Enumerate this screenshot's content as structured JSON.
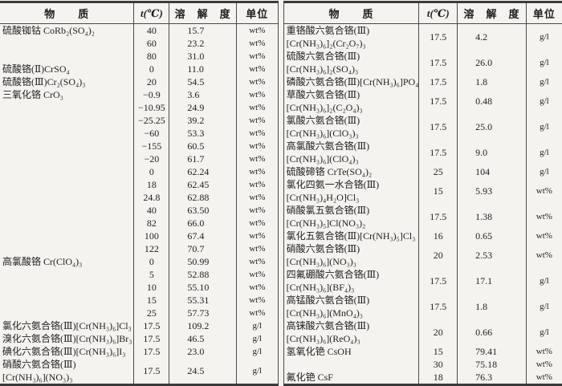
{
  "page": {
    "background": "#f4f3ef",
    "ink": "#1e1e1e",
    "rule_color": "#3c3c3c"
  },
  "tables": [
    {
      "name": "solubility-table-left",
      "headers": {
        "substance": "物　　质",
        "temperature": "t(℃)",
        "solubility": "溶　解　度",
        "unit": "单位"
      },
      "rows": [
        {
          "substance": "硫酸铷钴 CoRb₂(SO₄)₂",
          "t": "40",
          "s": "15.7",
          "u": "wt%"
        },
        {
          "substance": "",
          "t": "60",
          "s": "23.2",
          "u": "wt%"
        },
        {
          "substance": "",
          "t": "80",
          "s": "31.0",
          "u": "wt%"
        },
        {
          "substance": "硫酸铬(Ⅱ)CrSO₄",
          "t": "0",
          "s": "11.0",
          "u": "wt%"
        },
        {
          "substance": "硫酸铬(Ⅲ)Cr₂(SO₄)₃",
          "t": "20",
          "s": "54.5",
          "u": "wt%"
        },
        {
          "substance": "三氧化铬 CrO₃",
          "t": "−0.9",
          "s": "3.6",
          "u": "wt%"
        },
        {
          "substance": "",
          "t": "−10.95",
          "s": "24.9",
          "u": "wt%"
        },
        {
          "substance": "",
          "t": "−25.25",
          "s": "39.2",
          "u": "wt%"
        },
        {
          "substance": "",
          "t": "−60",
          "s": "53.3",
          "u": "wt%"
        },
        {
          "substance": "",
          "t": "−155",
          "s": "60.5",
          "u": "wt%"
        },
        {
          "substance": "",
          "t": "−20",
          "s": "61.7",
          "u": "wt%"
        },
        {
          "substance": "",
          "t": "0",
          "s": "62.24",
          "u": "wt%"
        },
        {
          "substance": "",
          "t": "18",
          "s": "62.45",
          "u": "wt%"
        },
        {
          "substance": "",
          "t": "24.8",
          "s": "62.88",
          "u": "wt%"
        },
        {
          "substance": "",
          "t": "40",
          "s": "63.50",
          "u": "wt%"
        },
        {
          "substance": "",
          "t": "82",
          "s": "66.0",
          "u": "wt%"
        },
        {
          "substance": "",
          "t": "100",
          "s": "67.4",
          "u": "wt%"
        },
        {
          "substance": "",
          "t": "122",
          "s": "70.7",
          "u": "wt%"
        },
        {
          "substance": "高氯酸铬 Cr(ClO₄)₃",
          "t": "0",
          "s": "50.99",
          "u": "wt%"
        },
        {
          "substance": "",
          "t": "5",
          "s": "52.88",
          "u": "wt%"
        },
        {
          "substance": "",
          "t": "10",
          "s": "55.10",
          "u": "wt%"
        },
        {
          "substance": "",
          "t": "15",
          "s": "55.31",
          "u": "wt%"
        },
        {
          "substance": "",
          "t": "25",
          "s": "57.73",
          "u": "wt%"
        },
        {
          "substance": "氯化六氨合铬(Ⅲ)[Cr(NH₃)₆]Cl₃",
          "t": "17.5",
          "s": "109.2",
          "u": "g/l"
        },
        {
          "substance": "溴化六氨合铬(Ⅲ)[Cr(NH₃)₆]Br₃",
          "t": "17.5",
          "s": "46.5",
          "u": "g/l"
        },
        {
          "substance": "碘化六氨合铬(Ⅲ)[Cr(NH₃)₆]I₃",
          "t": "17.5",
          "s": "23.0",
          "u": "g/l"
        },
        {
          "substance": "硝酸六氨合铬(Ⅲ)\n[Cr(NH₃)₆](NO₃)₃",
          "t": "17.5",
          "s": "24.5",
          "u": "g/l"
        }
      ]
    },
    {
      "name": "solubility-table-right",
      "headers": {
        "substance": "物　　质",
        "temperature": "t(℃)",
        "solubility": "溶　解　度",
        "unit": "单位"
      },
      "rows": [
        {
          "substance": "重铬酸六氨合铬(Ⅲ)\n[Cr(NH₃)₆]₂(Cr₂O₇)₃",
          "t": "17.5",
          "s": "4.2",
          "u": "g/l"
        },
        {
          "substance": "硫酸六氨合铬(Ⅲ)\n[Cr(NH₃)₆]₂(SO₄)₃",
          "t": "17.5",
          "s": "26.0",
          "u": "g/l"
        },
        {
          "substance": "磷酸六氨合铬(Ⅲ)[Cr(NH₃)₆]PO₄",
          "t": "17.5",
          "s": "1.8",
          "u": "g/l"
        },
        {
          "substance": "草酸六氨合铬(Ⅲ)\n[Cr(NH₃)₆]₂(C₂O₄)₃",
          "t": "17.5",
          "s": "0.48",
          "u": "g/l"
        },
        {
          "substance": "氯酸六氨合铬(Ⅲ)\n[Cr(NH₃)₆](ClO₃)₃",
          "t": "17.5",
          "s": "25.0",
          "u": "g/l"
        },
        {
          "substance": "高氯酸六氨合铬(Ⅲ)\n[Cr(NH₃)₆](ClO₄)₃",
          "t": "17.5",
          "s": "9.0",
          "u": "g/l"
        },
        {
          "substance": "硫酸碲铬 CrTe(SO₄)₂",
          "t": "25",
          "s": "104",
          "u": "g/l"
        },
        {
          "substance": "氯化四氨一水合铬(Ⅲ)\n[Cr(NH₃)₄H₂O]Cl₃",
          "t": "15",
          "s": "5.93",
          "u": "wt%"
        },
        {
          "substance": "硝酸氯五氨合铬(Ⅲ)\n[Cr(NH₃)₅]Cl(NO₃)₂",
          "t": "17.5",
          "s": "1.38",
          "u": "wt%"
        },
        {
          "substance": "氯化五氨合铬(Ⅲ)[Cr(NH₃)₅]Cl₃",
          "t": "16",
          "s": "0.65",
          "u": "wt%"
        },
        {
          "substance": "硝酸六氨合铬(Ⅲ)\n[Cr(NH₃)₆](NO₃)₃",
          "t": "20",
          "s": "2.53",
          "u": "wt%"
        },
        {
          "substance": "四氟硼酸六氨合铬(Ⅲ)\n[Cr(NH₃)₆](BF₄)₃",
          "t": "17.5",
          "s": "17.1",
          "u": "g/l"
        },
        {
          "substance": "高锰酸六氨合铬(Ⅲ)\n[Cr(NH₃)₆](MnO₄)₃",
          "t": "17.5",
          "s": "1.8",
          "u": "g/l"
        },
        {
          "substance": "高铼酸六氨合铬(Ⅲ)\n[Cr(NH₃)₆](ReO₄)₃",
          "t": "20",
          "s": "0.66",
          "u": "g/l"
        },
        {
          "substance": "氢氧化铯 CsOH",
          "t": "15",
          "s": "79.41",
          "u": "wt%"
        },
        {
          "substance": "",
          "t": "30",
          "s": "75.18",
          "u": "wt%"
        },
        {
          "substance": "氟化铯 CsF",
          "t": "18",
          "s": "76.3",
          "u": "wt%"
        }
      ]
    }
  ]
}
